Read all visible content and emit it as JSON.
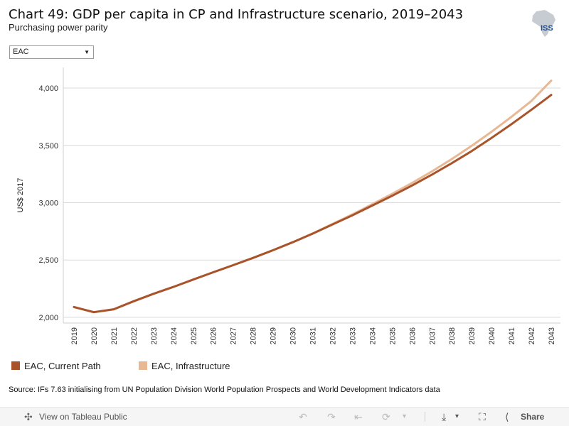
{
  "header": {
    "title": "Chart 49: GDP per capita in CP and Infrastructure scenario, 2019–2043",
    "subtitle": "Purchasing power parity",
    "logo_text": "ISS"
  },
  "filter": {
    "selected": "EAC"
  },
  "chart_data": {
    "type": "line",
    "ylabel": "US$ 2017",
    "xlabel": "",
    "ylim": [
      1950,
      4180
    ],
    "yticks": [
      2000,
      2500,
      3000,
      3500,
      4000
    ],
    "ytick_labels": [
      "2,000",
      "2,500",
      "3,000",
      "3,500",
      "4,000"
    ],
    "grid": true,
    "legend_position": "bottom",
    "x": [
      2019,
      2020,
      2021,
      2022,
      2023,
      2024,
      2025,
      2026,
      2027,
      2028,
      2029,
      2030,
      2031,
      2032,
      2033,
      2034,
      2035,
      2036,
      2037,
      2038,
      2039,
      2040,
      2041,
      2042,
      2043
    ],
    "series": [
      {
        "name": "EAC, Current Path",
        "color": "#a9532b",
        "values": [
          2090,
          2045,
          2070,
          2140,
          2205,
          2265,
          2330,
          2393,
          2455,
          2518,
          2585,
          2655,
          2730,
          2810,
          2890,
          2975,
          3060,
          3150,
          3245,
          3345,
          3450,
          3565,
          3685,
          3810,
          3940
        ]
      },
      {
        "name": "EAC, Infrastructure",
        "color": "#e8b895",
        "values": [
          2090,
          2045,
          2070,
          2140,
          2205,
          2265,
          2330,
          2393,
          2455,
          2518,
          2585,
          2655,
          2732,
          2815,
          2898,
          2987,
          3077,
          3172,
          3273,
          3381,
          3496,
          3619,
          3749,
          3887,
          4065
        ]
      }
    ]
  },
  "source": "Source: IFs 7.63 initialising from UN Population Division World Population Prospects and World Development Indicators data",
  "toolbar": {
    "view_label": "View on Tableau Public",
    "share_label": "Share"
  }
}
